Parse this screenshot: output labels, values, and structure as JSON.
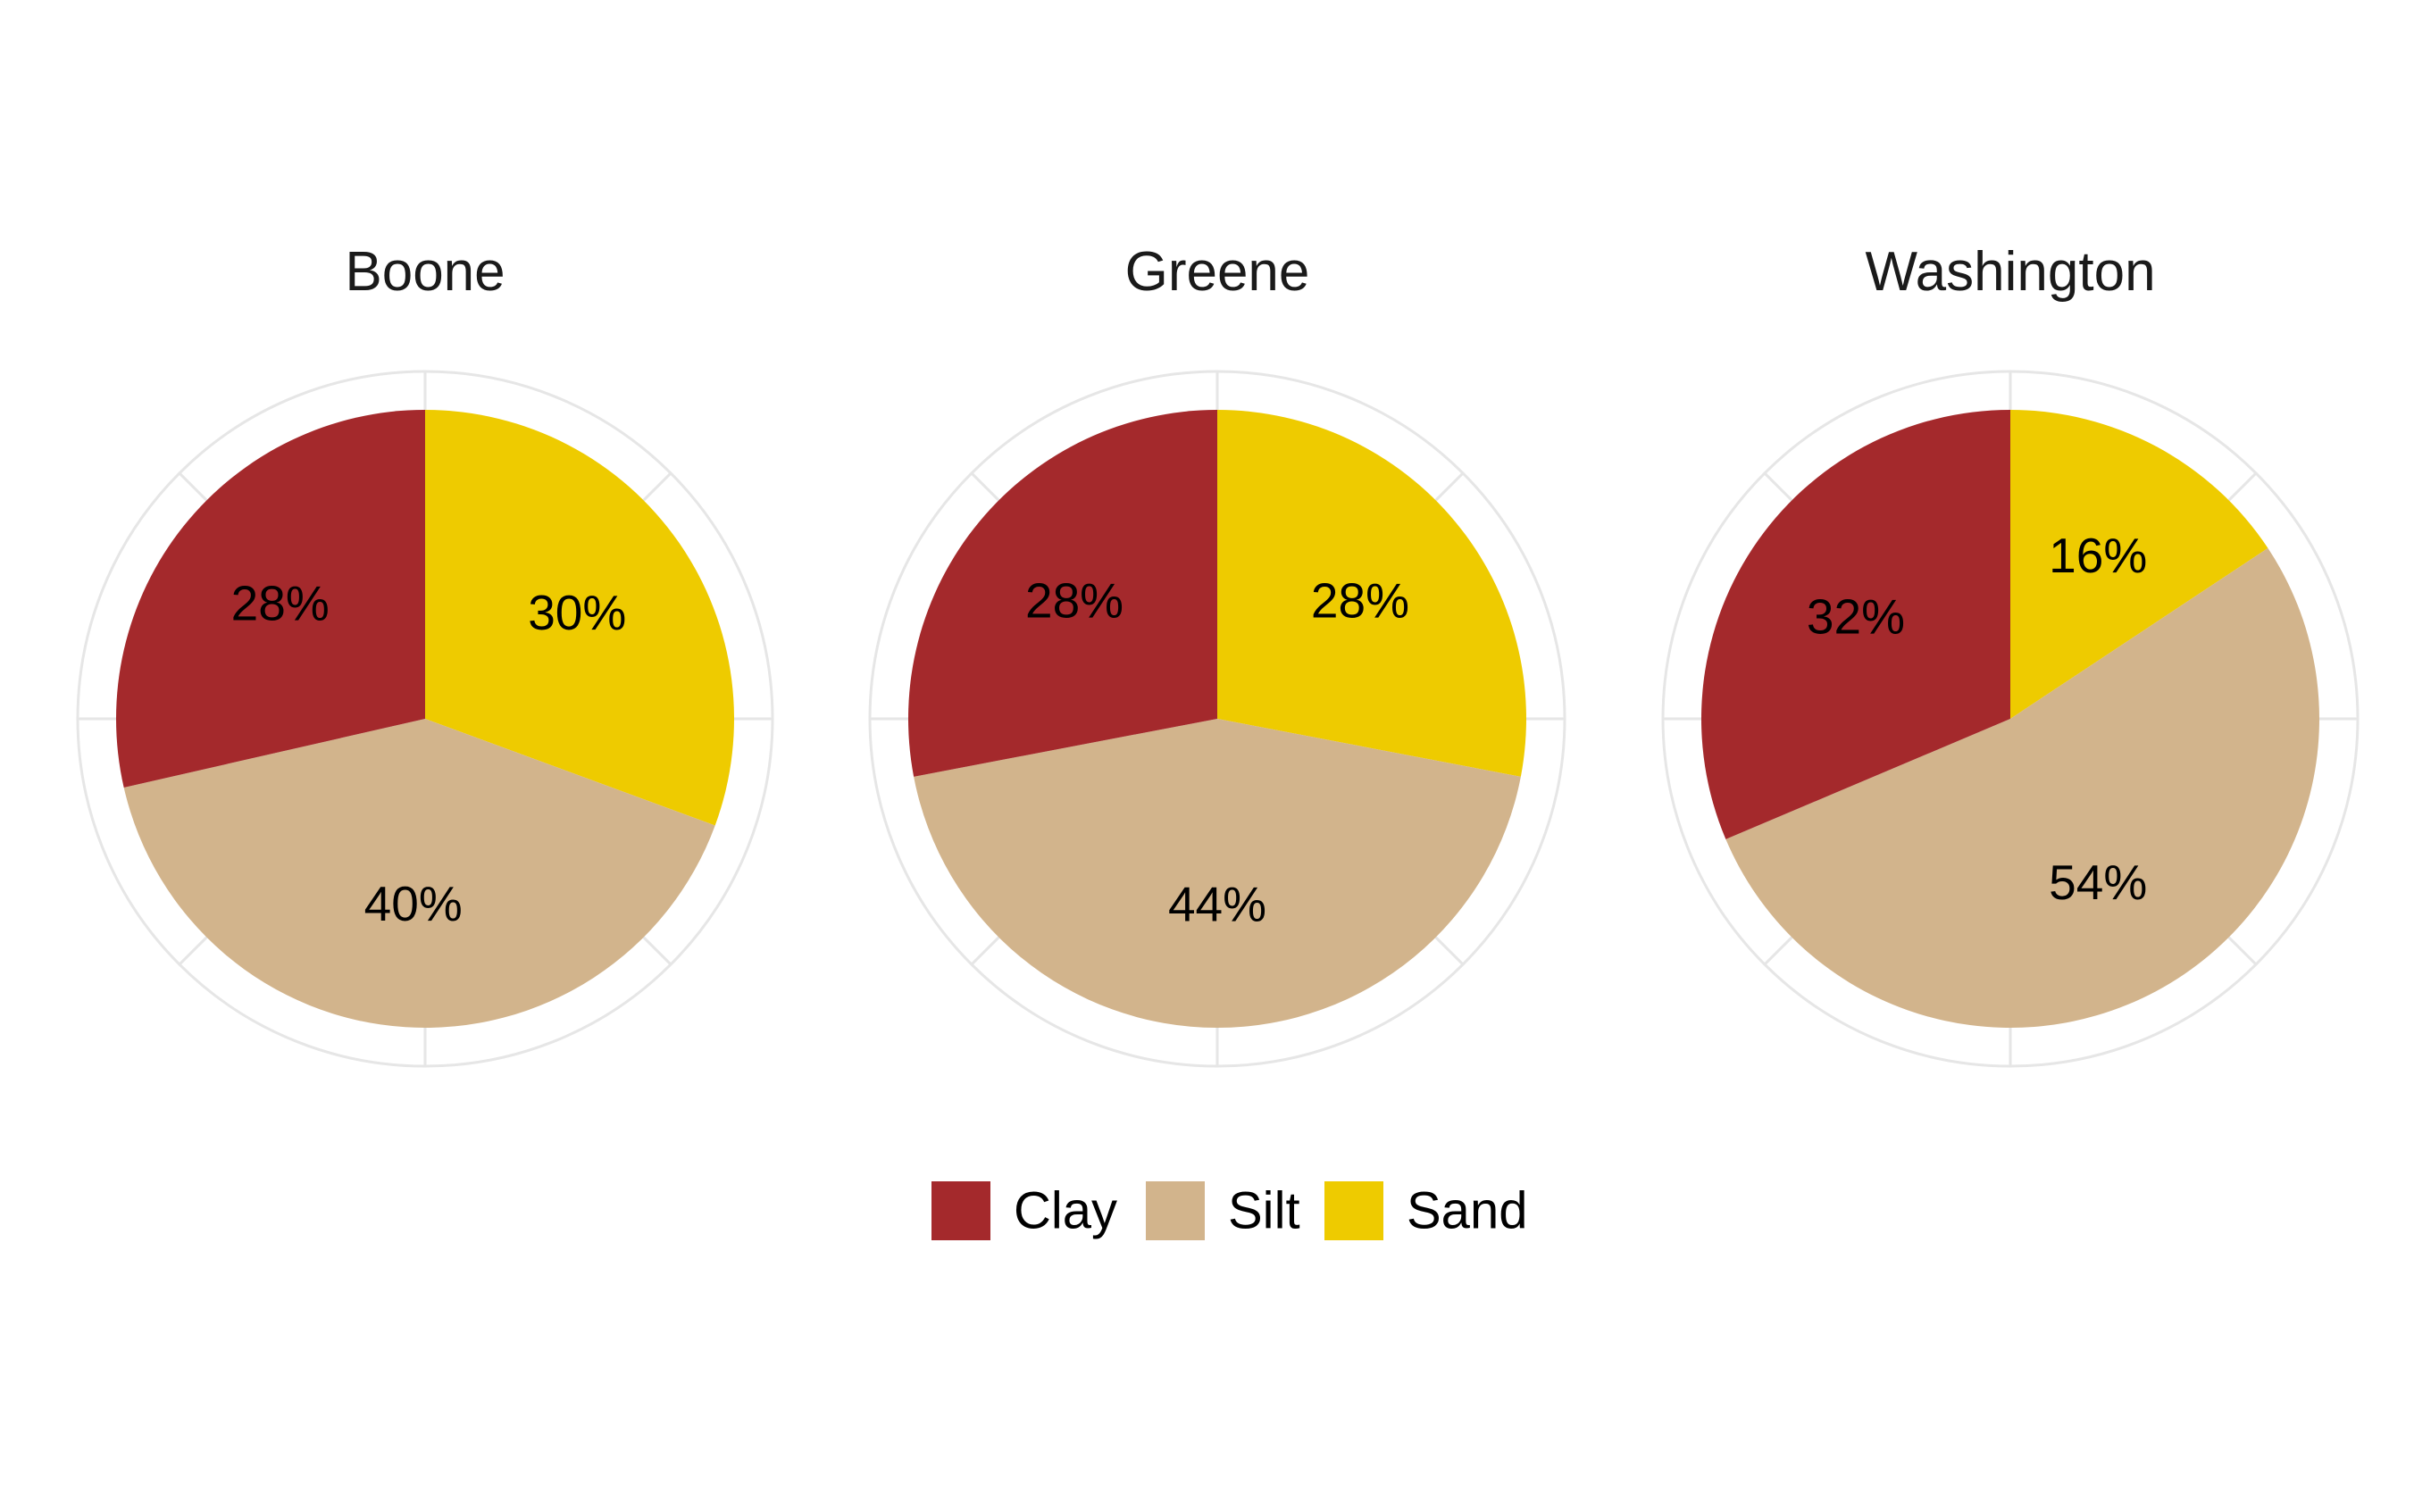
{
  "chart_data": {
    "type": "pie",
    "categories": [
      "Clay",
      "Silt",
      "Sand"
    ],
    "colors": {
      "Clay": "#a4292c",
      "Silt": "#d2b48c",
      "Sand": "#eecb00"
    },
    "grid": true,
    "legend_position": "bottom",
    "pies": [
      {
        "title": "Boone",
        "values": [
          28,
          40,
          30
        ],
        "labels": [
          "28%",
          "40%",
          "30%"
        ]
      },
      {
        "title": "Greene",
        "values": [
          28,
          44,
          28
        ],
        "labels": [
          "28%",
          "44%",
          "28%"
        ]
      },
      {
        "title": "Washington",
        "values": [
          32,
          54,
          16
        ],
        "labels": [
          "32%",
          "54%",
          "16%"
        ]
      }
    ]
  }
}
